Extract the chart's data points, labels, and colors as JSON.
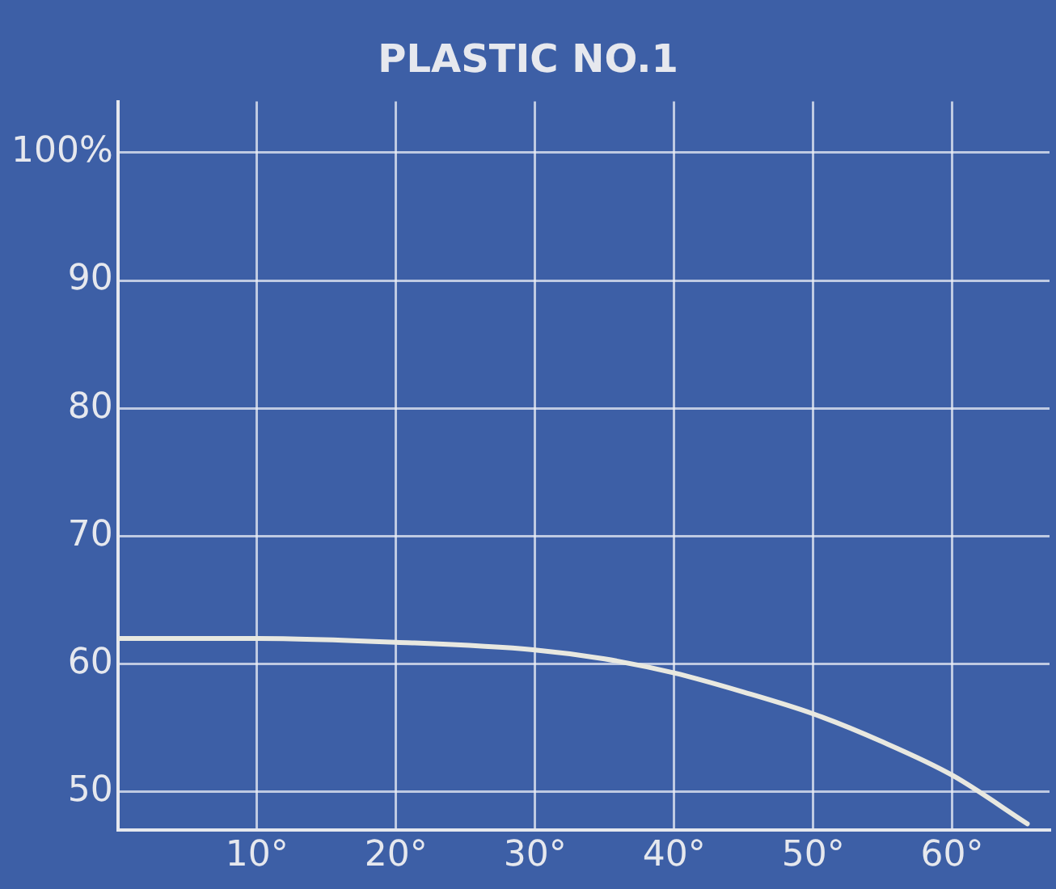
{
  "chart_data": {
    "type": "line",
    "title": "PLASTIC NO.1",
    "x": [
      0,
      10,
      20,
      30,
      35,
      40,
      45,
      50,
      55,
      60,
      65.4
    ],
    "series": [
      {
        "color": "#e8e8e0",
        "values": [
          62.0,
          62.0,
          61.7,
          61.1,
          60.4,
          59.3,
          57.8,
          56.1,
          53.9,
          51.3,
          47.5
        ]
      }
    ],
    "xlim": [
      0,
      67
    ],
    "xticks": [
      {
        "value": 10,
        "label": "10°"
      },
      {
        "value": 20,
        "label": "20°"
      },
      {
        "value": 30,
        "label": "30°"
      },
      {
        "value": 40,
        "label": "40°"
      },
      {
        "value": 50,
        "label": "50°"
      },
      {
        "value": 60,
        "label": "60°"
      }
    ],
    "ylim": [
      47,
      104
    ],
    "yticks": [
      50,
      60,
      70,
      80,
      90,
      {
        "value": 100,
        "label": "100%"
      }
    ],
    "grid": true,
    "legend": false,
    "marker": "none",
    "line_style": "solid"
  }
}
